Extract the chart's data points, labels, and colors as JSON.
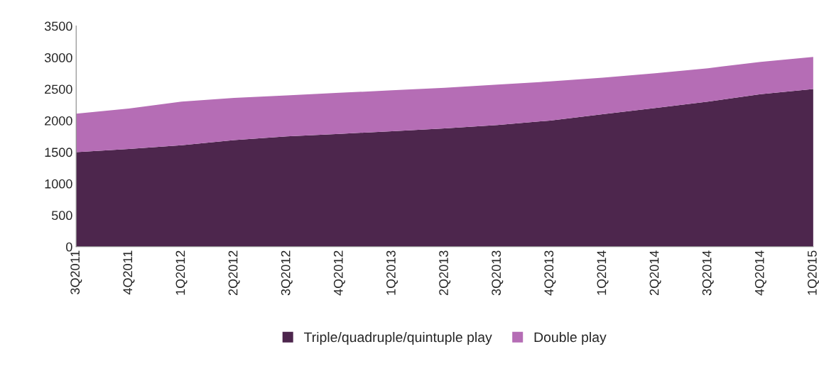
{
  "chart_data": {
    "type": "area",
    "stacked": true,
    "categories": [
      "3Q2011",
      "4Q2011",
      "1Q2012",
      "2Q2012",
      "3Q2012",
      "4Q2012",
      "1Q2013",
      "2Q2013",
      "3Q2013",
      "4Q2013",
      "1Q2014",
      "2Q2014",
      "3Q2014",
      "4Q2014",
      "1Q2015"
    ],
    "series": [
      {
        "name": "Triple/quadruple/quintuple play",
        "color": "#4d264d",
        "values": [
          1500,
          1550,
          1610,
          1690,
          1750,
          1790,
          1830,
          1875,
          1930,
          2000,
          2100,
          2200,
          2300,
          2420,
          2500
        ]
      },
      {
        "name": "Double play",
        "color": "#b56db5",
        "values": [
          610,
          640,
          690,
          670,
          650,
          650,
          650,
          645,
          640,
          620,
          580,
          550,
          530,
          510,
          510
        ]
      }
    ],
    "ylim": [
      0,
      3500
    ],
    "yticks": [
      0,
      500,
      1000,
      1500,
      2000,
      2500,
      3000,
      3500
    ],
    "grid": false,
    "legend": "bottom"
  }
}
